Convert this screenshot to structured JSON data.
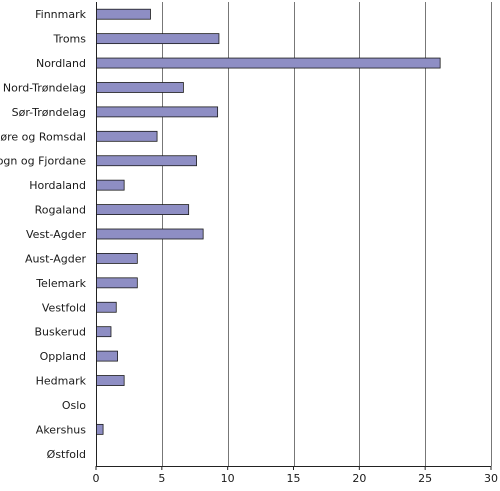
{
  "chart_data": {
    "type": "bar",
    "orientation": "horizontal",
    "categories": [
      "Finnmark",
      "Troms",
      "Nordland",
      "Nord-Trøndelag",
      "Sør-Trøndelag",
      "Møre og Romsdal",
      "Sogn og Fjordane",
      "Hordaland",
      "Rogaland",
      "Vest-Agder",
      "Aust-Agder",
      "Telemark",
      "Vestfold",
      "Buskerud",
      "Oppland",
      "Hedmark",
      "Oslo",
      "Akershus",
      "Østfold"
    ],
    "values": [
      4.1,
      9.3,
      26.1,
      6.6,
      9.2,
      4.6,
      7.6,
      2.1,
      7.0,
      8.1,
      3.1,
      3.1,
      1.5,
      1.1,
      1.6,
      2.1,
      0,
      0.5,
      0
    ],
    "xlim": [
      0,
      30
    ],
    "xticks": [
      0,
      5,
      10,
      15,
      20,
      25,
      30
    ],
    "grid": "vertical",
    "bar_color": "#8e8ec4",
    "bar_stroke": "#1a1a1a",
    "title": "",
    "xlabel": "",
    "ylabel": ""
  }
}
